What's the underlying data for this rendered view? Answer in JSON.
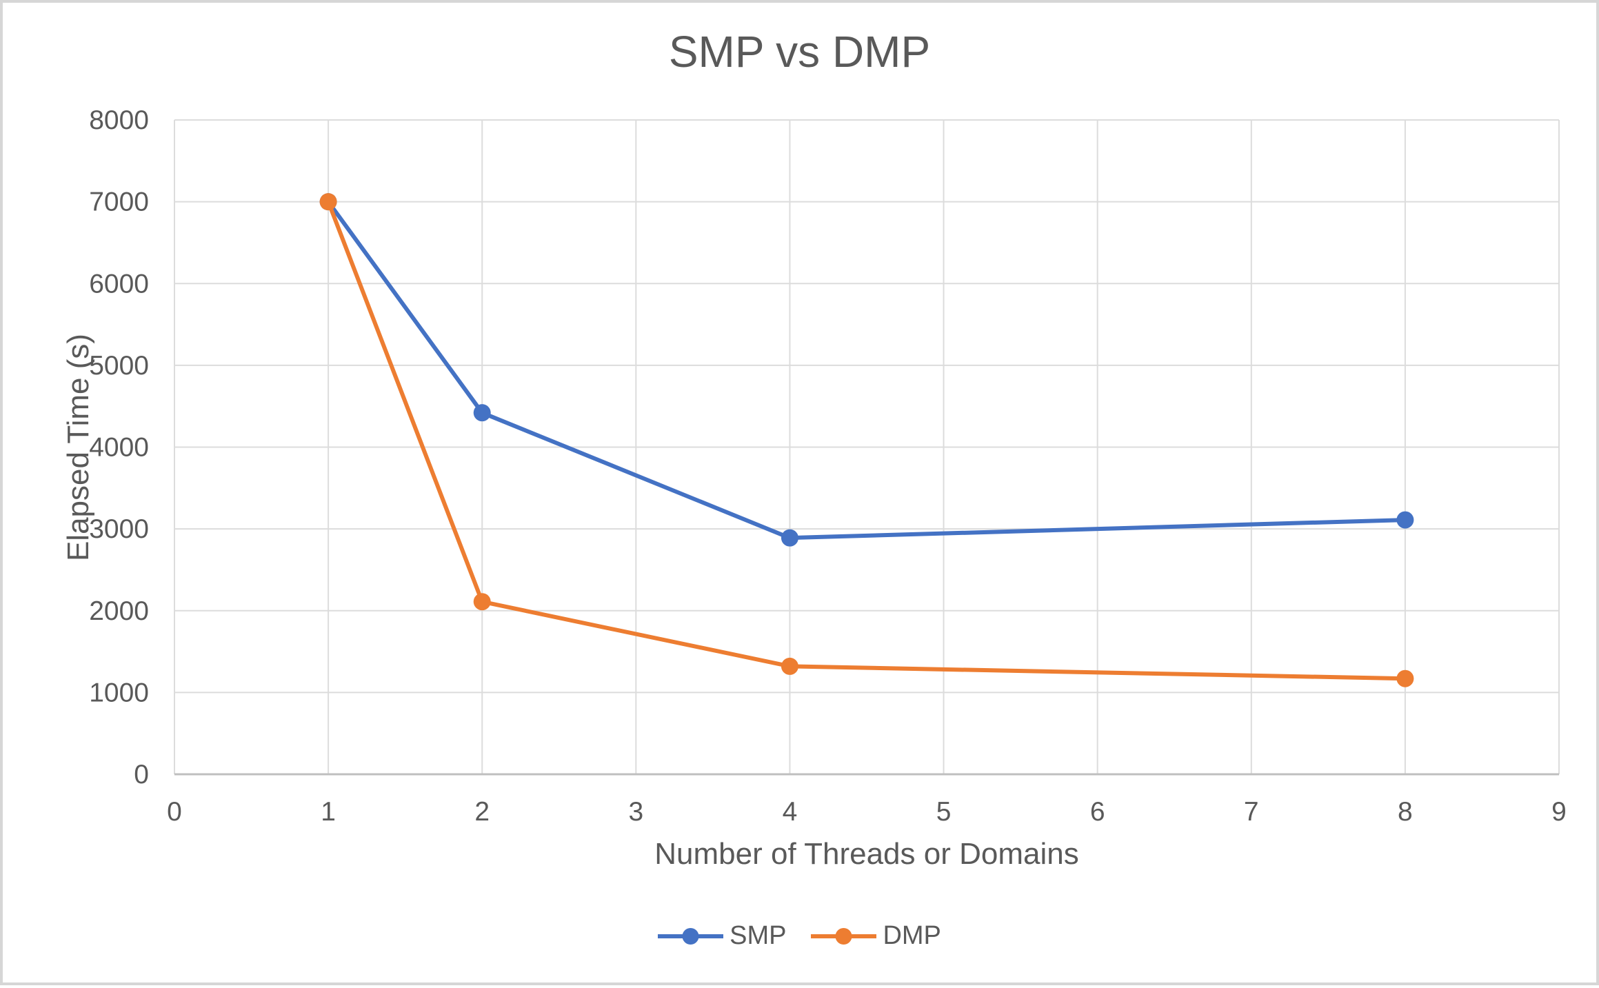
{
  "chart": {
    "title": "SMP vs DMP",
    "x_axis_title": "Number of Threads or Domains",
    "y_axis_title": "Elapsed Time (s)"
  },
  "chart_data": {
    "type": "line",
    "title": "SMP vs DMP",
    "xlabel": "Number of Threads or Domains",
    "ylabel": "Elapsed Time (s)",
    "x": [
      1,
      2,
      4,
      8
    ],
    "series": [
      {
        "name": "SMP",
        "color": "#4472C4",
        "values": [
          7000,
          4420,
          2890,
          3110
        ]
      },
      {
        "name": "DMP",
        "color": "#ED7D31",
        "values": [
          7000,
          2110,
          1320,
          1170
        ]
      }
    ],
    "xlim": [
      0,
      9
    ],
    "ylim": [
      0,
      8000
    ],
    "x_ticks": [
      0,
      1,
      2,
      3,
      4,
      5,
      6,
      7,
      8,
      9
    ],
    "y_ticks": [
      0,
      1000,
      2000,
      3000,
      4000,
      5000,
      6000,
      7000,
      8000
    ],
    "grid": true,
    "legend_position": "bottom-center",
    "marker": "circle",
    "colors": {
      "gridline": "#dcdcdc",
      "axis_line": "#bfbfbf",
      "text": "#595959",
      "background": "#ffffff",
      "frame_border": "#d6d6d6"
    }
  }
}
